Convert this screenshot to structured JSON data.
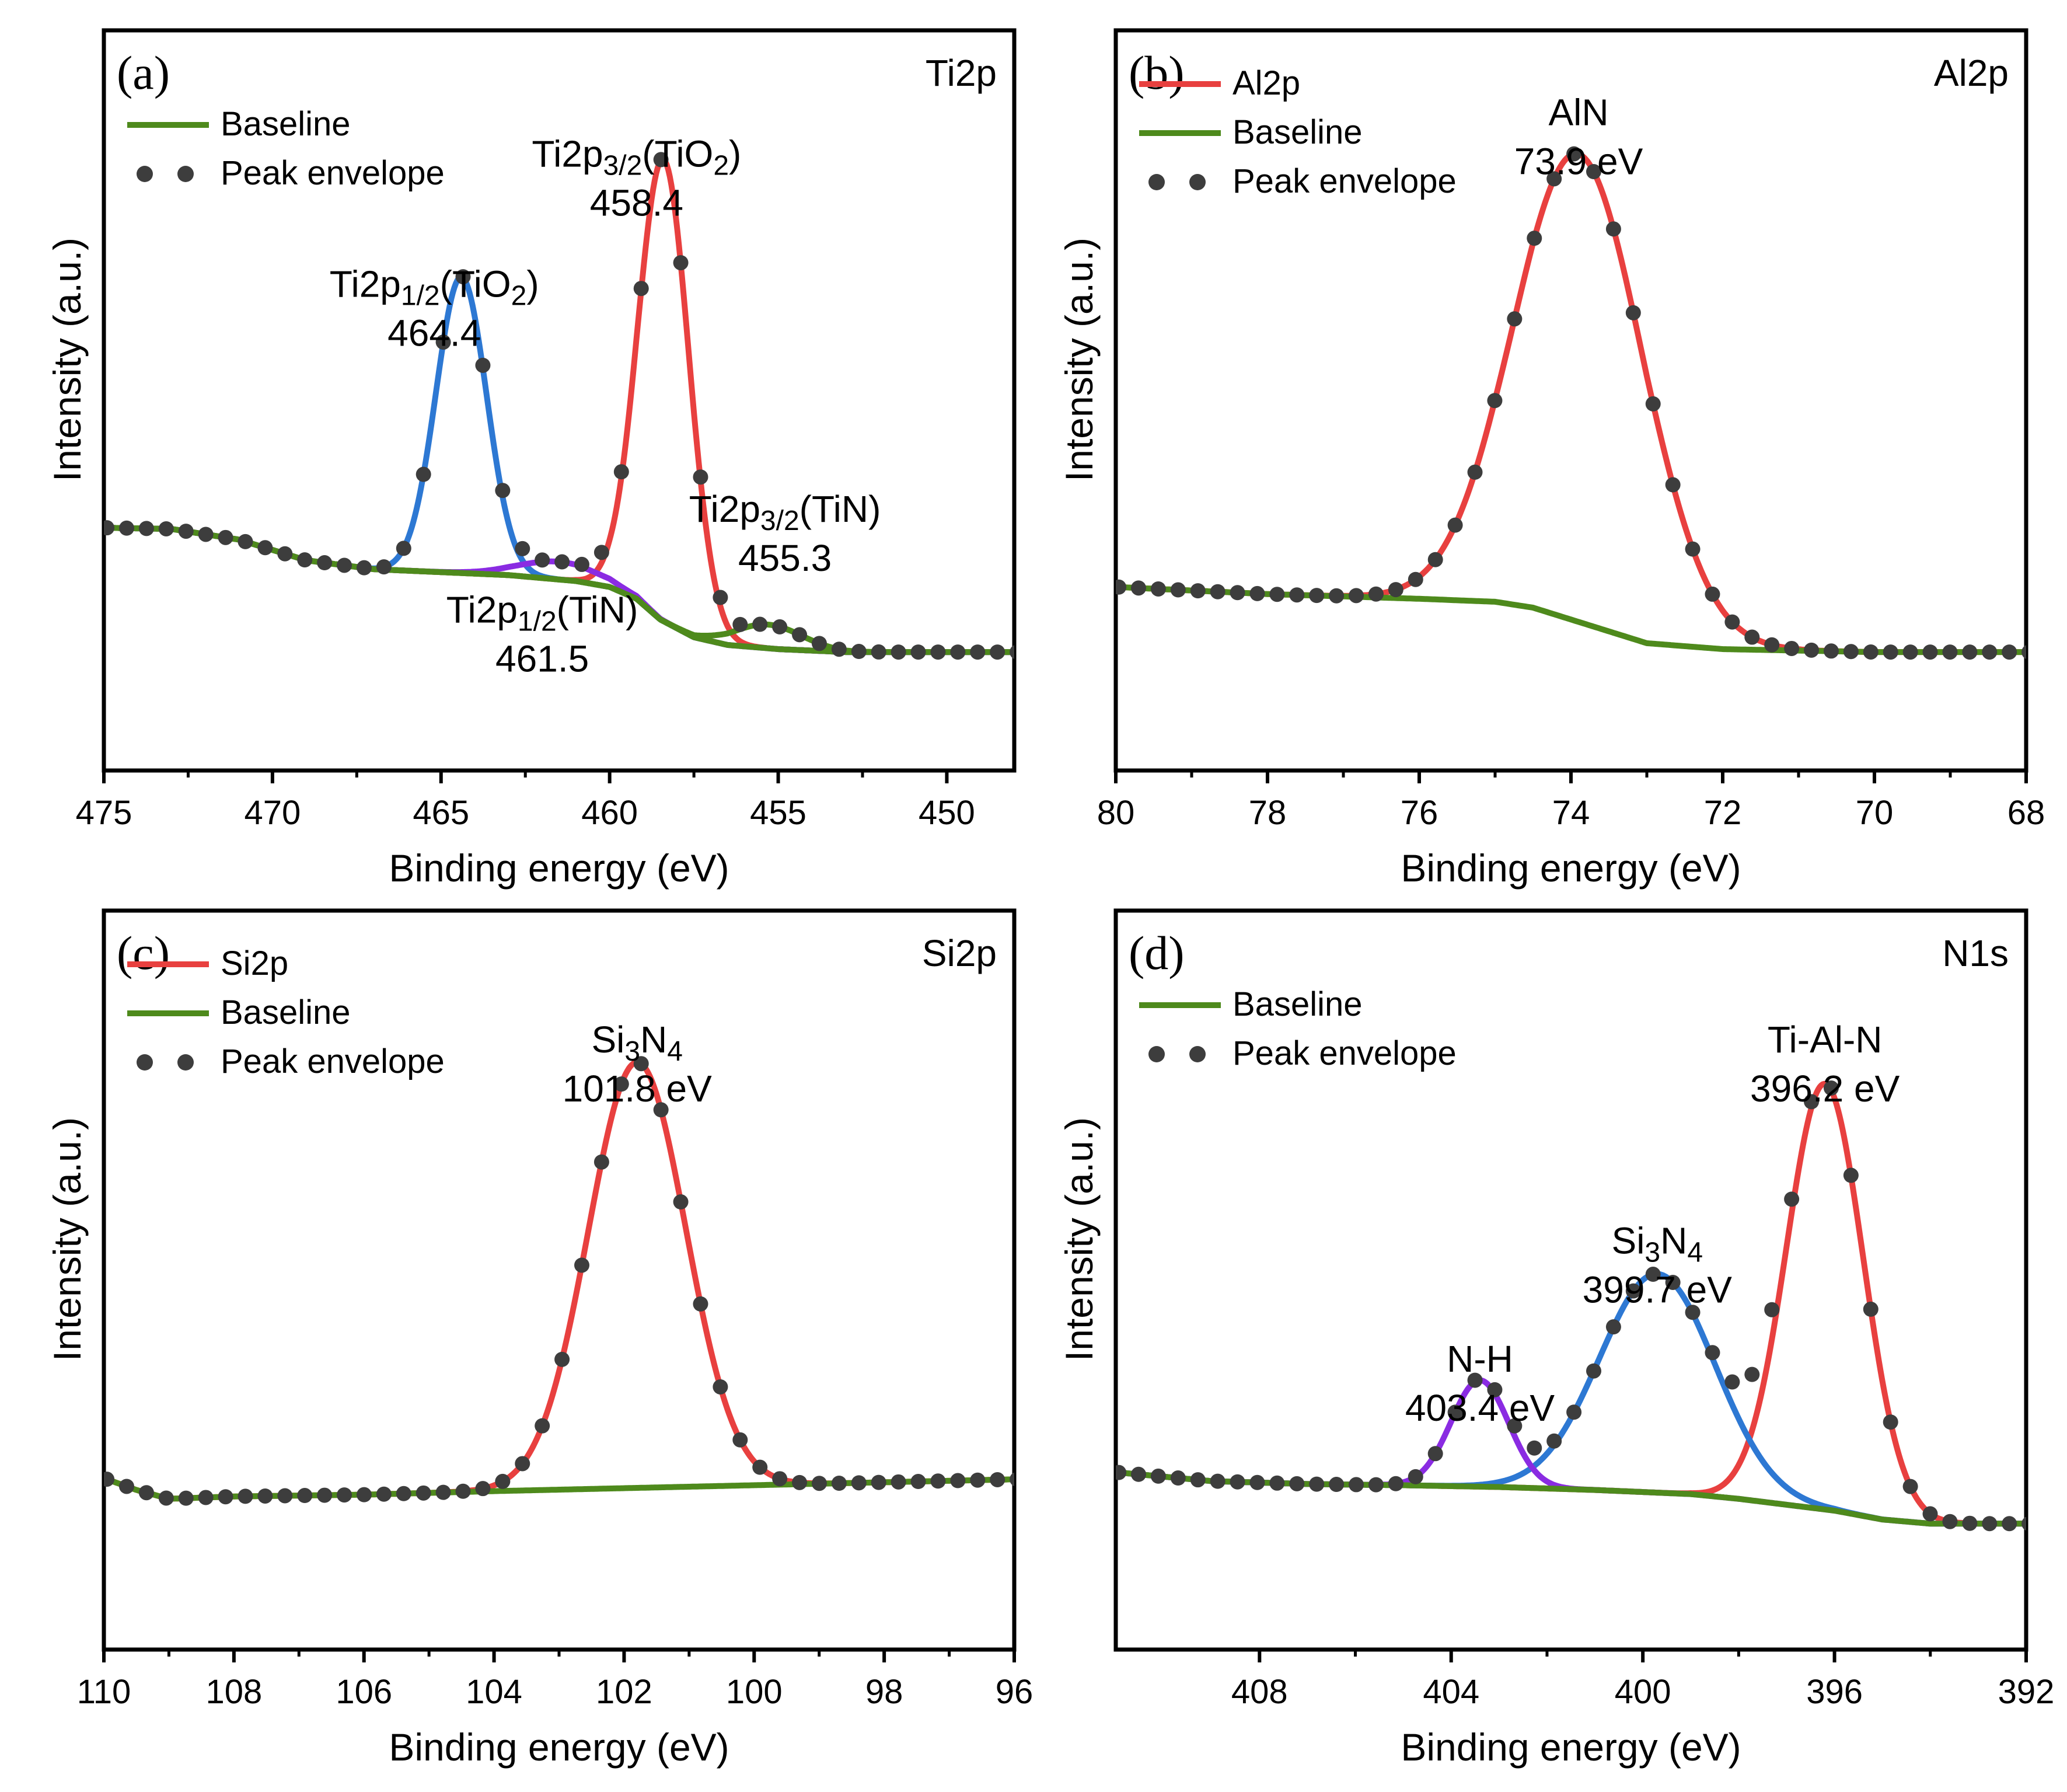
{
  "figure": {
    "colors": {
      "baseline": "#4e8a1c",
      "ti2p32_tio2": "#e8403f",
      "ti2p12_tio2": "#2d78d3",
      "ti2p12_tin": "#8a2be2",
      "ti2p32_tin": "#4e8a1c",
      "red": "#e8403f",
      "blue": "#2d78d3",
      "purple": "#8a2be2",
      "dots": "#3d3d3d"
    }
  },
  "chart_data": [
    {
      "id": "a",
      "type": "line",
      "panel_label": "(a)",
      "title": "Ti2p",
      "xlabel": "Binding energy (eV)",
      "ylabel": "Intensity (a.u.)",
      "xlim": [
        475,
        448
      ],
      "ylim": [
        0,
        1
      ],
      "xticks": [
        475,
        470,
        465,
        460,
        455,
        450
      ],
      "baseline": {
        "x": [
          475,
          473,
          471,
          469,
          467,
          465,
          463,
          461,
          460,
          459.2,
          458.5,
          457.5,
          456.5,
          455,
          453,
          451,
          448
        ],
        "y": [
          0.26,
          0.258,
          0.24,
          0.205,
          0.19,
          0.185,
          0.18,
          0.17,
          0.16,
          0.14,
          0.105,
          0.075,
          0.062,
          0.055,
          0.05,
          0.05,
          0.05
        ]
      },
      "series": [
        {
          "name": "Ti2p3/2(TiO2)",
          "color_key": "ti2p32_tio2",
          "center": 458.4,
          "height": 0.78,
          "width": 0.75
        },
        {
          "name": "Ti2p1/2(TiO2)",
          "color_key": "ti2p12_tio2",
          "center": 464.4,
          "height": 0.5,
          "width": 0.75
        },
        {
          "name": "Ti2p1/2(TiN)",
          "color_key": "ti2p12_tin",
          "center": 461.5,
          "height": 0.03,
          "width": 1.2
        },
        {
          "name": "Ti2p3/2(TiN)",
          "color_key": "ti2p32_tin",
          "center": 455.3,
          "height": 0.04,
          "width": 1.0
        }
      ],
      "legend": {
        "position": "top-left",
        "entries": [
          {
            "label": "Baseline",
            "style": "line",
            "color_key": "baseline"
          },
          {
            "label": "Peak envelope",
            "style": "dots"
          }
        ]
      },
      "annotations": [
        {
          "lines": [
            "Ti2p",
            "3/2",
            "(TiO",
            "2",
            ")"
          ],
          "value": "458.4",
          "x": 459.2,
          "y_frac": 0.87
        },
        {
          "lines": [
            "Ti2p",
            "1/2",
            "(TiO",
            "2",
            ")"
          ],
          "value": "464.4",
          "x": 465.2,
          "y_frac": 0.65
        },
        {
          "lines": [
            "Ti2p",
            "3/2",
            "(TiN",
            "",
            ")"
          ],
          "value": "455.3",
          "x": 454.8,
          "y_frac": 0.27
        },
        {
          "lines": [
            "Ti2p",
            "1/2",
            "(TiN",
            "",
            ")"
          ],
          "value": "461.5",
          "x": 462,
          "y_frac": 0.1
        }
      ]
    },
    {
      "id": "b",
      "type": "line",
      "panel_label": "(b)",
      "title": "Al2p",
      "xlabel": "Binding energy (eV)",
      "ylabel": "Intensity (a.u.)",
      "xlim": [
        80,
        68
      ],
      "ylim": [
        0,
        1
      ],
      "xticks": [
        80,
        78,
        76,
        74,
        72,
        70,
        68
      ],
      "baseline": {
        "x": [
          80,
          78,
          76,
          75,
          74.5,
          74,
          73.5,
          73,
          72,
          70,
          68
        ],
        "y": [
          0.16,
          0.148,
          0.14,
          0.135,
          0.125,
          0.105,
          0.085,
          0.065,
          0.055,
          0.05,
          0.05
        ]
      },
      "series": [
        {
          "name": "Al2p",
          "color_key": "red",
          "center": 73.9,
          "height": 0.79,
          "width": 0.85
        }
      ],
      "legend": {
        "position": "top-left",
        "entries": [
          {
            "label": "Al2p",
            "style": "line",
            "color_key": "red"
          },
          {
            "label": "Baseline",
            "style": "line",
            "color_key": "baseline"
          },
          {
            "label": "Peak envelope",
            "style": "dots"
          }
        ]
      },
      "annotations": [
        {
          "lines": [
            "AlN"
          ],
          "value": "73.9 eV",
          "x": 73.9,
          "y_frac": 0.94
        }
      ]
    },
    {
      "id": "c",
      "type": "line",
      "panel_label": "(c)",
      "title": "Si2p",
      "xlabel": "Binding energy (eV)",
      "ylabel": "Intensity (a.u.)",
      "xlim": [
        110,
        96
      ],
      "ylim": [
        0,
        1
      ],
      "xticks": [
        110,
        108,
        106,
        104,
        102,
        100,
        98,
        96
      ],
      "baseline": {
        "x": [
          110,
          109.5,
          109,
          108.5,
          108,
          106,
          104,
          102,
          100,
          98,
          96
        ],
        "y": [
          0.14,
          0.12,
          0.105,
          0.107,
          0.109,
          0.112,
          0.118,
          0.123,
          0.128,
          0.133,
          0.138
        ]
      },
      "series": [
        {
          "name": "Si2p",
          "color_key": "red",
          "center": 101.8,
          "height": 0.72,
          "width": 0.75
        }
      ],
      "legend": {
        "position": "top-left",
        "entries": [
          {
            "label": "Si2p",
            "style": "line",
            "color_key": "red"
          },
          {
            "label": "Baseline",
            "style": "line",
            "color_key": "baseline"
          },
          {
            "label": "Peak envelope",
            "style": "dots"
          }
        ]
      },
      "annotations": [
        {
          "lines": [
            "Si",
            "3",
            "N",
            "4"
          ],
          "value": "101.8 eV",
          "x": 101.8,
          "y_frac": 0.86
        }
      ]
    },
    {
      "id": "d",
      "type": "line",
      "panel_label": "(d)",
      "title": "N1s",
      "xlabel": "Binding energy (eV)",
      "ylabel": "Intensity (a.u.)",
      "xlim": [
        411,
        392
      ],
      "ylim": [
        0,
        1
      ],
      "xticks": [
        408,
        404,
        400,
        396,
        392
      ],
      "baseline": {
        "x": [
          411,
          409,
          407,
          405,
          403,
          401,
          399,
          398,
          397,
          396,
          395,
          394,
          392
        ],
        "y": [
          0.15,
          0.135,
          0.13,
          0.128,
          0.125,
          0.12,
          0.113,
          0.105,
          0.095,
          0.085,
          0.07,
          0.063,
          0.063
        ]
      },
      "series": [
        {
          "name": "Ti-Al-N",
          "color_key": "red",
          "center": 396.2,
          "height": 0.72,
          "width": 0.8
        },
        {
          "name": "Si3N4",
          "color_key": "blue",
          "center": 399.7,
          "height": 0.37,
          "width": 1.2
        },
        {
          "name": "N-H",
          "color_key": "purple",
          "center": 403.4,
          "height": 0.18,
          "width": 0.6
        }
      ],
      "legend": {
        "position": "top-left",
        "entries": [
          {
            "label": "Baseline",
            "style": "line",
            "color_key": "baseline"
          },
          {
            "label": "Peak envelope",
            "style": "dots"
          }
        ]
      },
      "annotations": [
        {
          "lines": [
            "Ti-Al-N"
          ],
          "value": "396.2 eV",
          "x": 396.2,
          "y_frac": 0.86
        },
        {
          "lines": [
            "Si",
            "3",
            "N",
            "4"
          ],
          "value": "399.7 eV",
          "x": 399.7,
          "y_frac": 0.52
        },
        {
          "lines": [
            "N-H"
          ],
          "value": "403.4 eV",
          "x": 403.4,
          "y_frac": 0.32
        }
      ]
    }
  ]
}
